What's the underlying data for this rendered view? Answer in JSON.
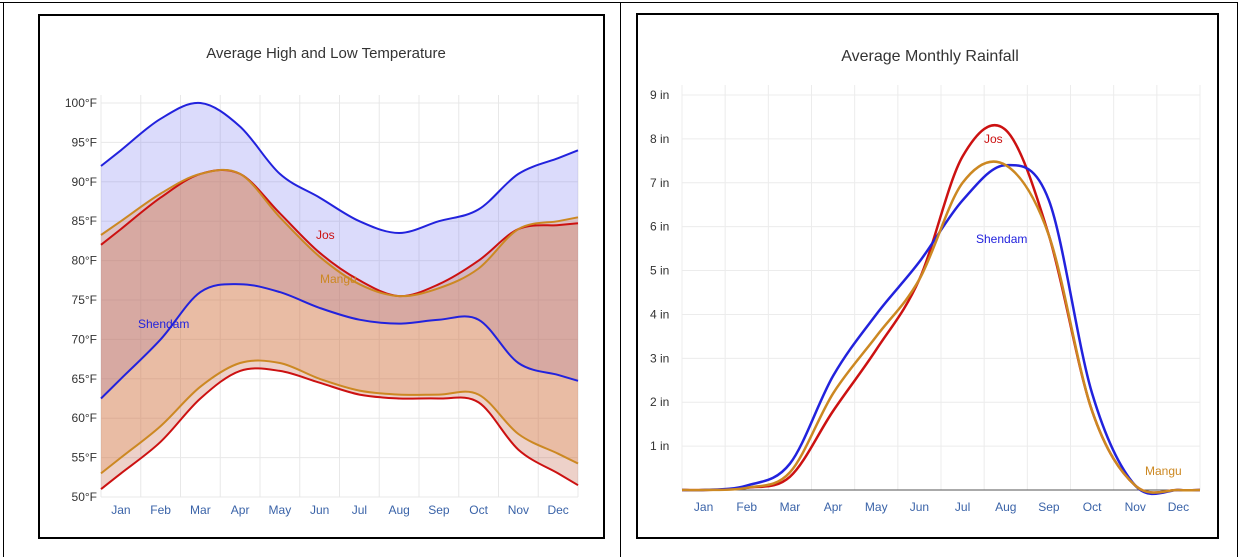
{
  "chart_data": [
    {
      "type": "area",
      "title": "Average High and Low Temperature",
      "xlabel": "",
      "ylabel": "",
      "categories": [
        "Jan",
        "Feb",
        "Mar",
        "Apr",
        "May",
        "Jun",
        "Jul",
        "Aug",
        "Sep",
        "Oct",
        "Nov",
        "Dec"
      ],
      "y_ticks": [
        "50°F",
        "55°F",
        "60°F",
        "65°F",
        "70°F",
        "75°F",
        "80°F",
        "85°F",
        "90°F",
        "95°F",
        "100°F"
      ],
      "ylim": [
        50,
        100
      ],
      "grid": true,
      "series": [
        {
          "name": "Shendam",
          "color": "#2222dd",
          "high": [
            94,
            98,
            100,
            97,
            91,
            88,
            85,
            83.5,
            85,
            86.5,
            91,
            93
          ],
          "low": [
            65,
            70,
            76,
            77,
            76,
            74,
            72.5,
            72,
            72.5,
            72.5,
            67,
            65.5
          ]
        },
        {
          "name": "Jos",
          "color": "#cc1111",
          "high": [
            84,
            88,
            91,
            91,
            86,
            81,
            77.5,
            75.5,
            77,
            80,
            84,
            84.5
          ],
          "low": [
            53,
            57,
            62.5,
            66,
            66,
            64.5,
            63,
            62.5,
            62.5,
            62,
            56,
            53
          ]
        },
        {
          "name": "Mangu",
          "color": "#cc8822",
          "high": [
            85,
            88.5,
            91,
            91,
            85.5,
            80.5,
            77,
            75.5,
            76.5,
            79,
            84,
            85
          ],
          "low": [
            55,
            59,
            64,
            67,
            67,
            65,
            63.5,
            63,
            63,
            63,
            58,
            55.5
          ]
        }
      ]
    },
    {
      "type": "line",
      "title": "Average Monthly Rainfall",
      "xlabel": "",
      "ylabel": "",
      "categories": [
        "Jan",
        "Feb",
        "Mar",
        "Apr",
        "May",
        "Jun",
        "Jul",
        "Aug",
        "Sep",
        "Oct",
        "Nov",
        "Dec"
      ],
      "y_ticks": [
        "1 in",
        "2 in",
        "3 in",
        "4 in",
        "5 in",
        "6 in",
        "7 in",
        "8 in",
        "9 in"
      ],
      "ylim": [
        0,
        9
      ],
      "grid": true,
      "series": [
        {
          "name": "Jos",
          "color": "#cc1111",
          "values": [
            0,
            0.05,
            0.3,
            1.8,
            3.2,
            4.8,
            7.6,
            8.2,
            5.8,
            1.8,
            0.1,
            0
          ]
        },
        {
          "name": "Shendam",
          "color": "#2222dd",
          "values": [
            0,
            0.1,
            0.6,
            2.6,
            4.0,
            5.2,
            6.6,
            7.4,
            6.6,
            2.2,
            0.1,
            0
          ]
        },
        {
          "name": "Mangu",
          "color": "#cc8822",
          "values": [
            0,
            0.05,
            0.4,
            2.2,
            3.5,
            4.8,
            7.0,
            7.4,
            5.8,
            1.8,
            0.1,
            0
          ]
        }
      ]
    }
  ]
}
